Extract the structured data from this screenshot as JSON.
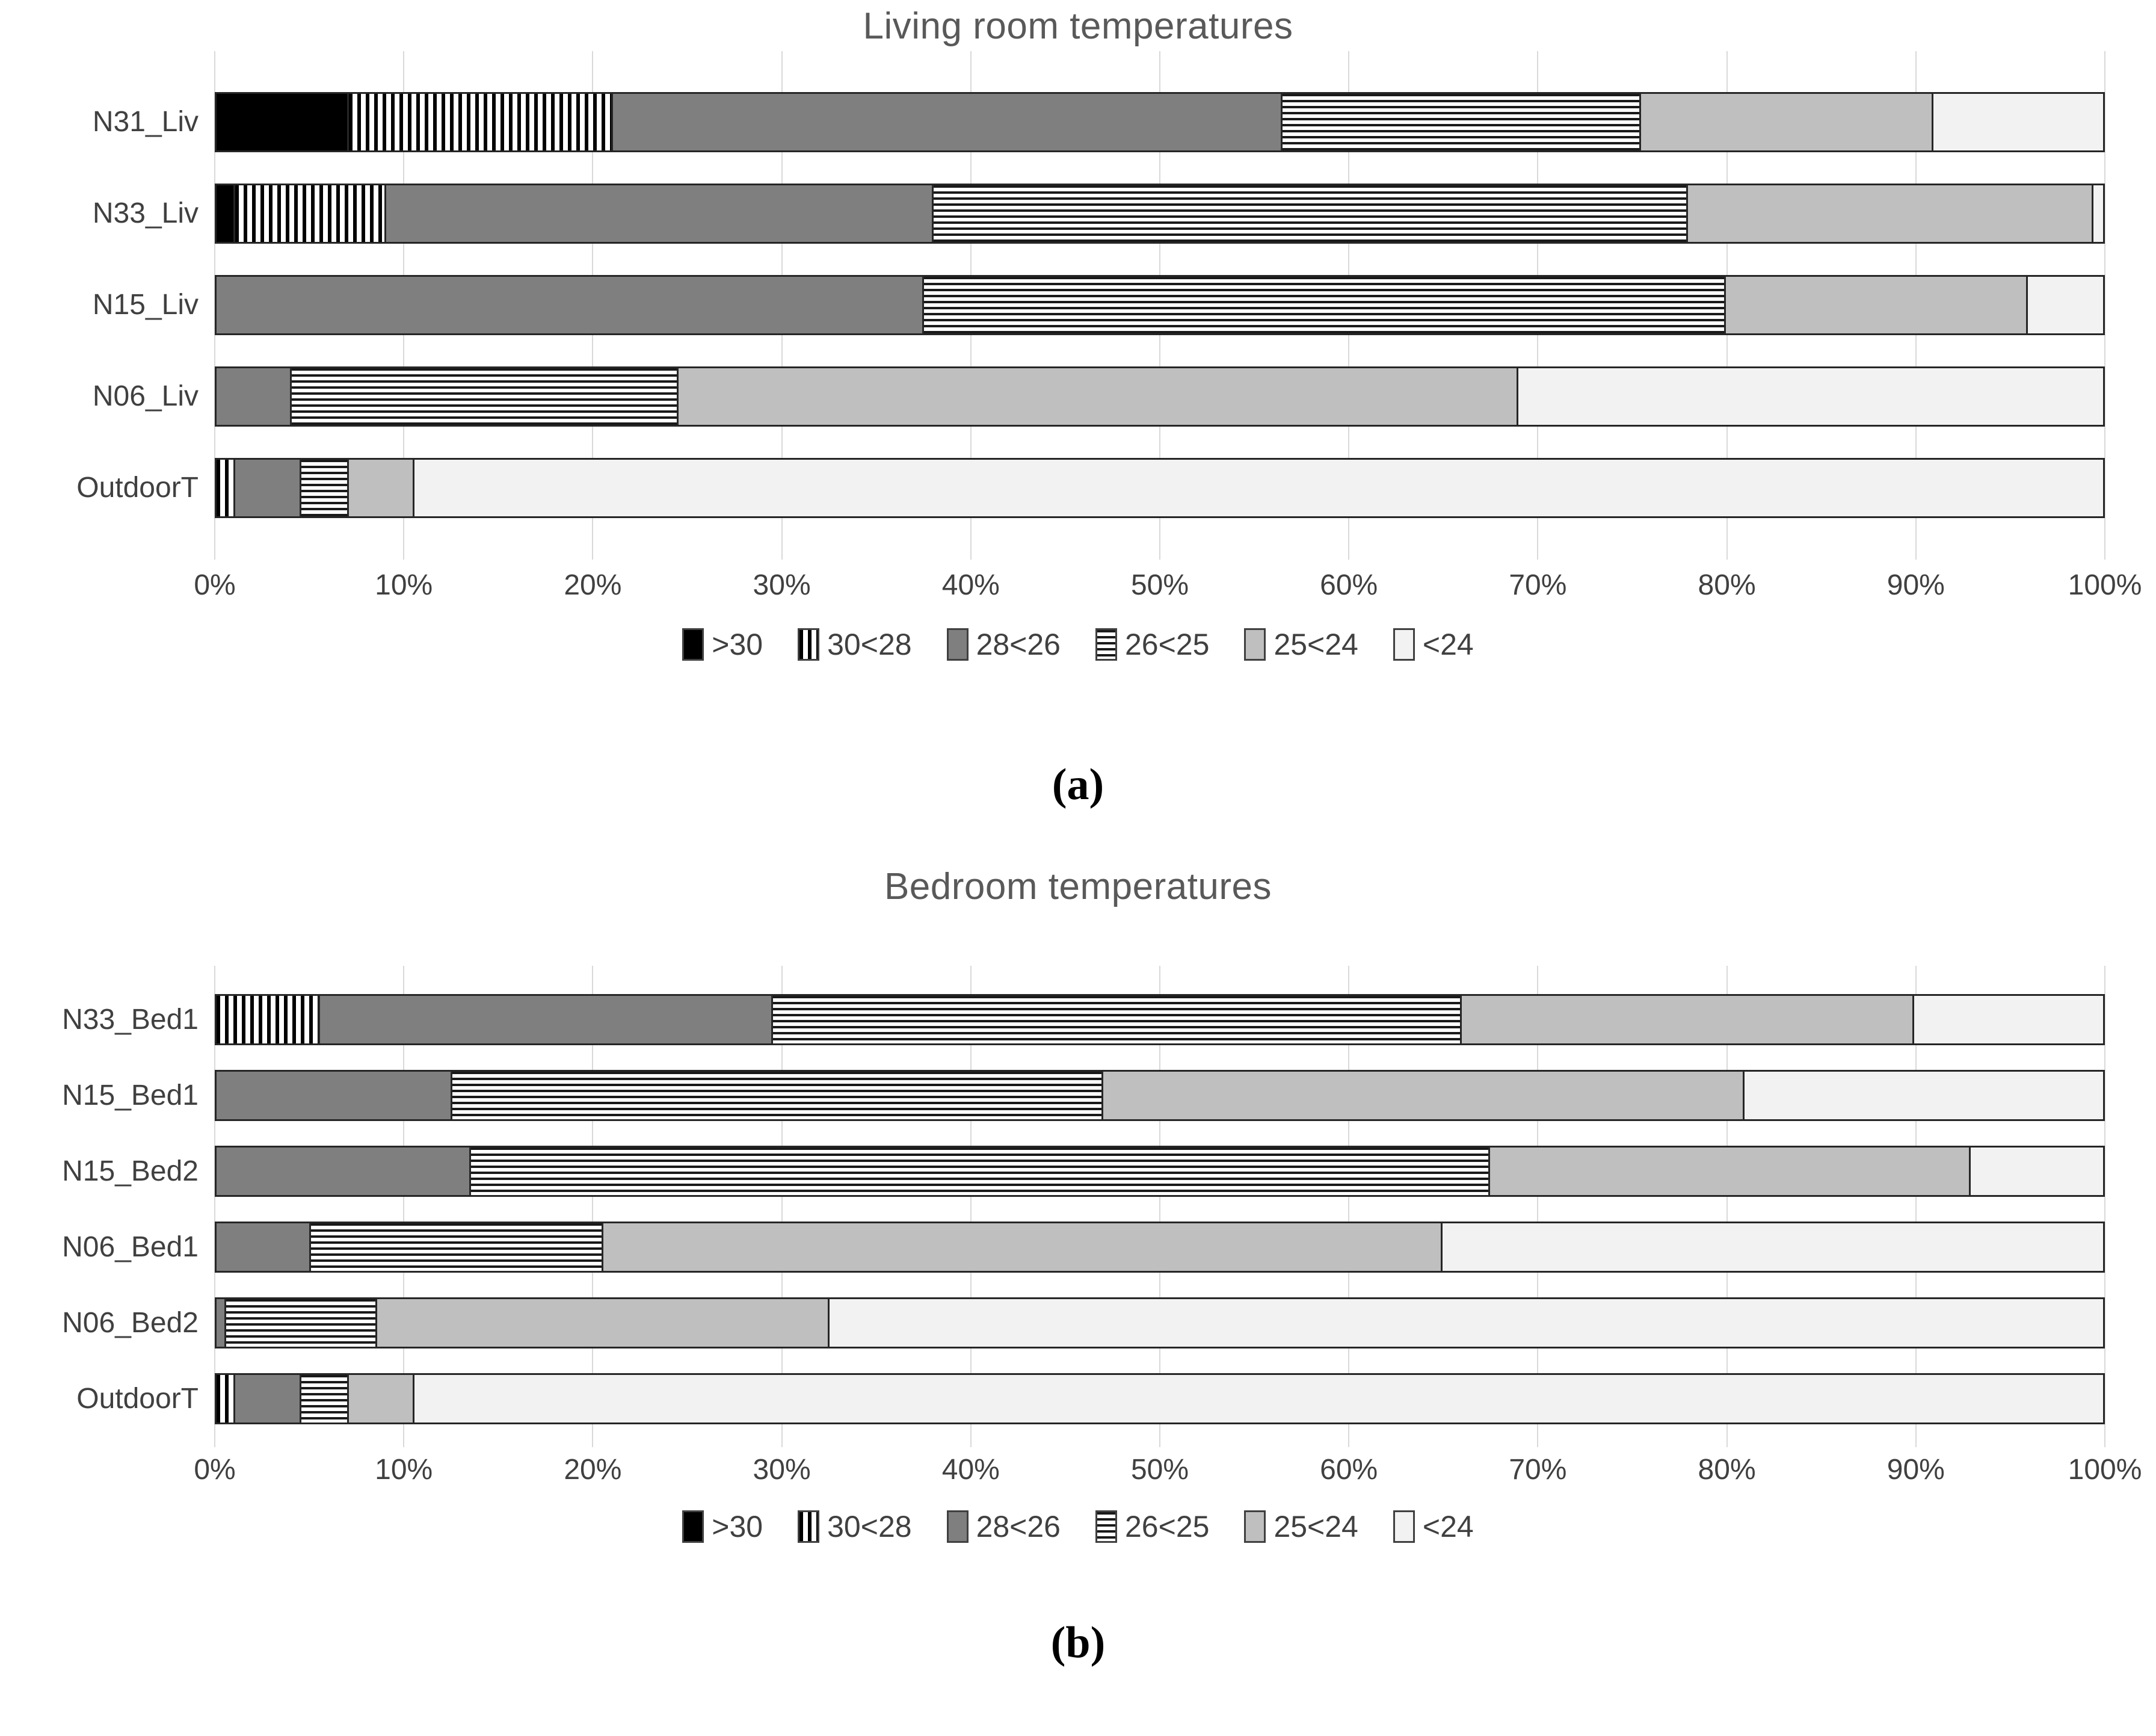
{
  "figure": {
    "captions": {
      "a": "(a)",
      "b": "(b)"
    }
  },
  "legend": {
    "items": [
      {
        "label": ">30",
        "pattern": "p-black",
        "swatch_icon": "solid-black-swatch"
      },
      {
        "label": "30<28",
        "pattern": "p-vstripe",
        "swatch_icon": "vertical-stripes-swatch"
      },
      {
        "label": "28<26",
        "pattern": "p-dgray",
        "swatch_icon": "dark-gray-swatch"
      },
      {
        "label": "26<25",
        "pattern": "p-hstripe",
        "swatch_icon": "horizontal-stripes-swatch"
      },
      {
        "label": "25<24",
        "pattern": "p-lgray",
        "swatch_icon": "light-gray-swatch"
      },
      {
        "label": "<24",
        "pattern": "p-xlgray",
        "swatch_icon": "lightest-gray-swatch"
      }
    ],
    "position": "bottom-center"
  },
  "colors": {
    "series_dark_gray": "#7f7f7f",
    "series_light_gray": "#bfbfbf",
    "series_lightest_gray": "#f2f2f2",
    "series_black": "#000000",
    "gridline": "#d9d9d9",
    "title_text": "#595959",
    "axis_text": "#404040",
    "bar_border": "#262626"
  },
  "chart_data": [
    {
      "type": "bar",
      "orientation": "horizontal",
      "stacked": true,
      "stack_total": 100,
      "title": "Living room temperatures",
      "caption": "(a)",
      "grid": true,
      "xlim": [
        0,
        100
      ],
      "x_ticks": [
        "0%",
        "10%",
        "20%",
        "30%",
        "40%",
        "50%",
        "60%",
        "70%",
        "80%",
        "90%",
        "100%"
      ],
      "categories": [
        "N31_Liv",
        "N33_Liv",
        "N15_Liv",
        "N06_Liv",
        "OutdoorT"
      ],
      "series": [
        {
          "name": ">30",
          "values": [
            7,
            1,
            0,
            0,
            0
          ]
        },
        {
          "name": "30<28",
          "values": [
            14,
            8,
            0,
            0,
            1
          ]
        },
        {
          "name": "28<26",
          "values": [
            35.5,
            29,
            37.5,
            4,
            3.5
          ]
        },
        {
          "name": "26<25",
          "values": [
            19,
            40,
            42.5,
            20.5,
            2.5
          ]
        },
        {
          "name": "25<24",
          "values": [
            15.5,
            21.5,
            16,
            44.5,
            3.5
          ]
        },
        {
          "name": "<24",
          "values": [
            9,
            0.5,
            4,
            31,
            89.5
          ]
        }
      ]
    },
    {
      "type": "bar",
      "orientation": "horizontal",
      "stacked": true,
      "stack_total": 100,
      "title": "Bedroom temperatures",
      "caption": "(b)",
      "grid": true,
      "xlim": [
        0,
        100
      ],
      "x_ticks": [
        "0%",
        "10%",
        "20%",
        "30%",
        "40%",
        "50%",
        "60%",
        "70%",
        "80%",
        "90%",
        "100%"
      ],
      "categories": [
        "N33_Bed1",
        "N15_Bed1",
        "N15_Bed2",
        "N06_Bed1",
        "N06_Bed2",
        "OutdoorT"
      ],
      "series": [
        {
          "name": ">30",
          "values": [
            0,
            0,
            0,
            0,
            0,
            0
          ]
        },
        {
          "name": "30<28",
          "values": [
            5.5,
            0,
            0,
            0,
            0,
            1
          ]
        },
        {
          "name": "28<26",
          "values": [
            24,
            12.5,
            13.5,
            5,
            0.5,
            3.5
          ]
        },
        {
          "name": "26<25",
          "values": [
            36.5,
            34.5,
            54,
            15.5,
            8,
            2.5
          ]
        },
        {
          "name": "25<24",
          "values": [
            24,
            34,
            25.5,
            44.5,
            24,
            3.5
          ]
        },
        {
          "name": "<24",
          "values": [
            10,
            19,
            7,
            35,
            67.5,
            89.5
          ]
        }
      ]
    }
  ]
}
